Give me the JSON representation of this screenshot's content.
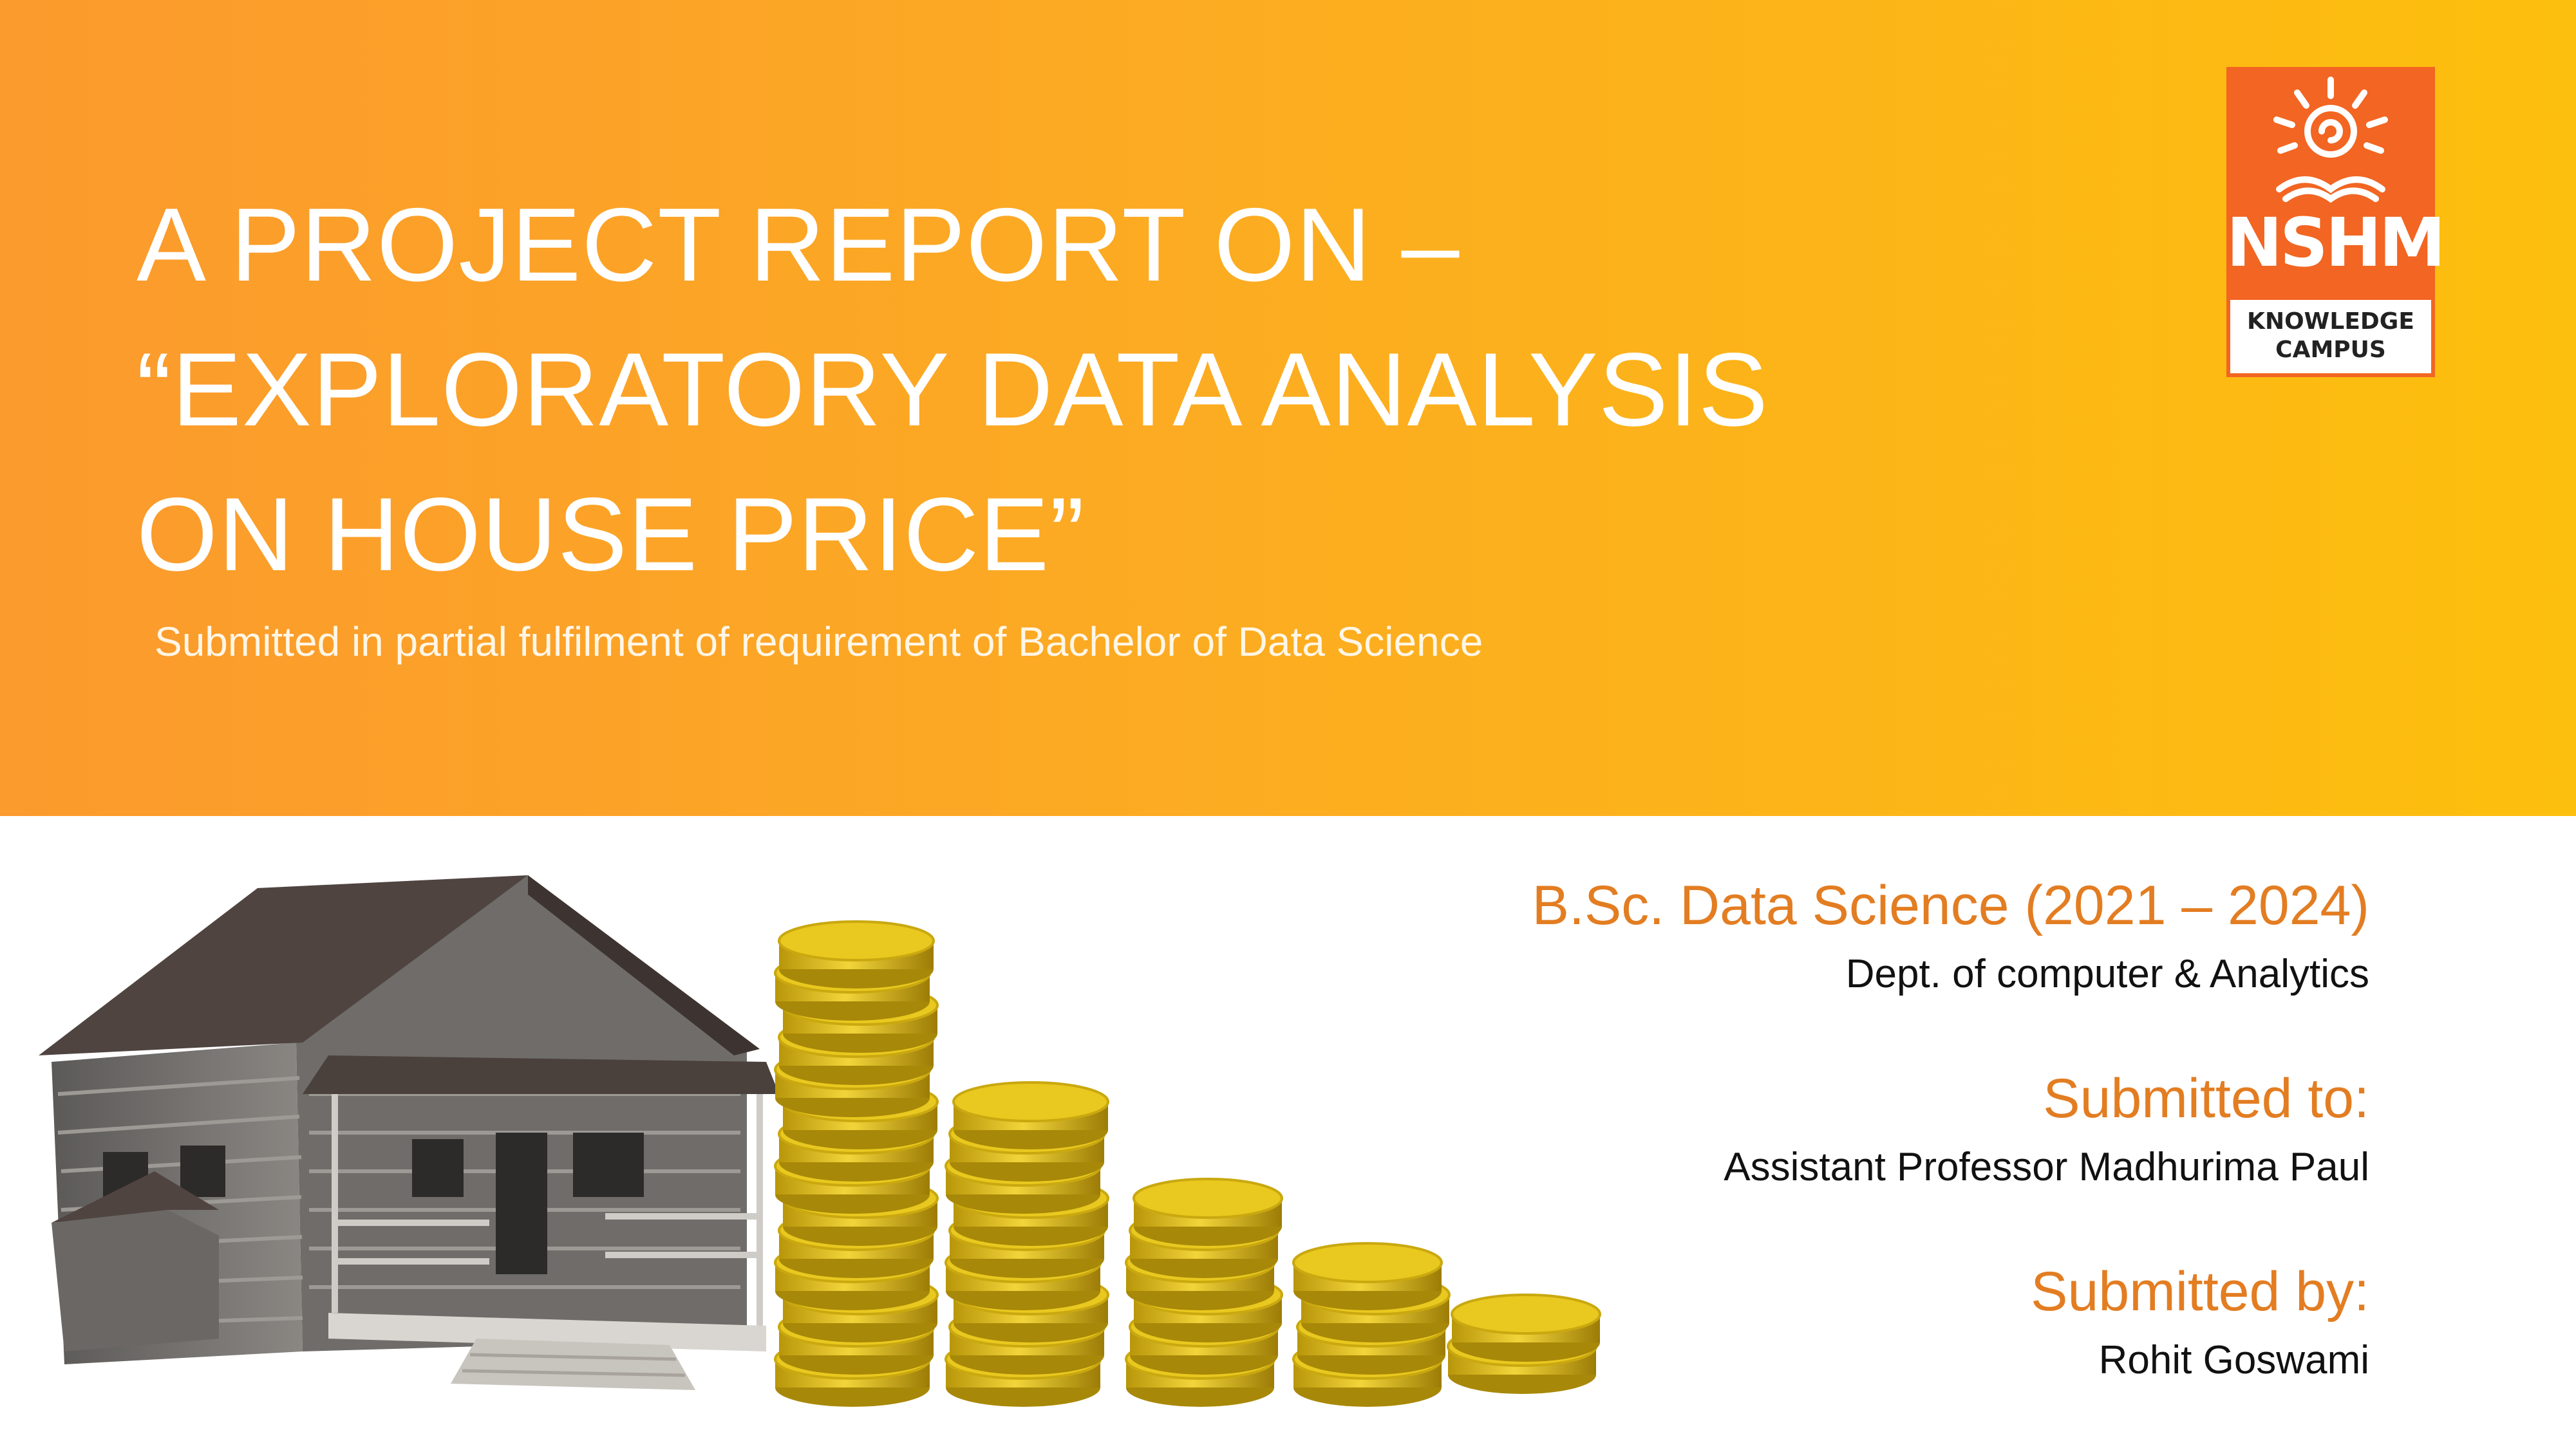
{
  "title": {
    "line1": "A PROJECT REPORT ON –",
    "line2": "“EXPLORATORY DATA ANALYSIS",
    "line3": "ON HOUSE PRICE”"
  },
  "subtitle": "Submitted in partial fulfilment of requirement of Bachelor of Data Science",
  "logo": {
    "brand": "NSHM",
    "tagline1": "KNOWLEDGE",
    "tagline2": "CAMPUS"
  },
  "course": {
    "name": "B.Sc. Data Science (2021 – 2024)",
    "dept": "Dept. of computer & Analytics"
  },
  "submitted_to": {
    "label": "Submitted to:",
    "name": "Assistant Professor Madhurima Paul"
  },
  "submitted_by": {
    "label": "Submitted by:",
    "name": "Rohit Goswami"
  },
  "colors": {
    "banner_start": "#fb9a2d",
    "banner_end": "#fdbf0d",
    "accent": "#e37d22",
    "logo_bg": "#f26522"
  },
  "illustration": {
    "icons": [
      "house-icon",
      "coin-stacks-icon"
    ]
  }
}
